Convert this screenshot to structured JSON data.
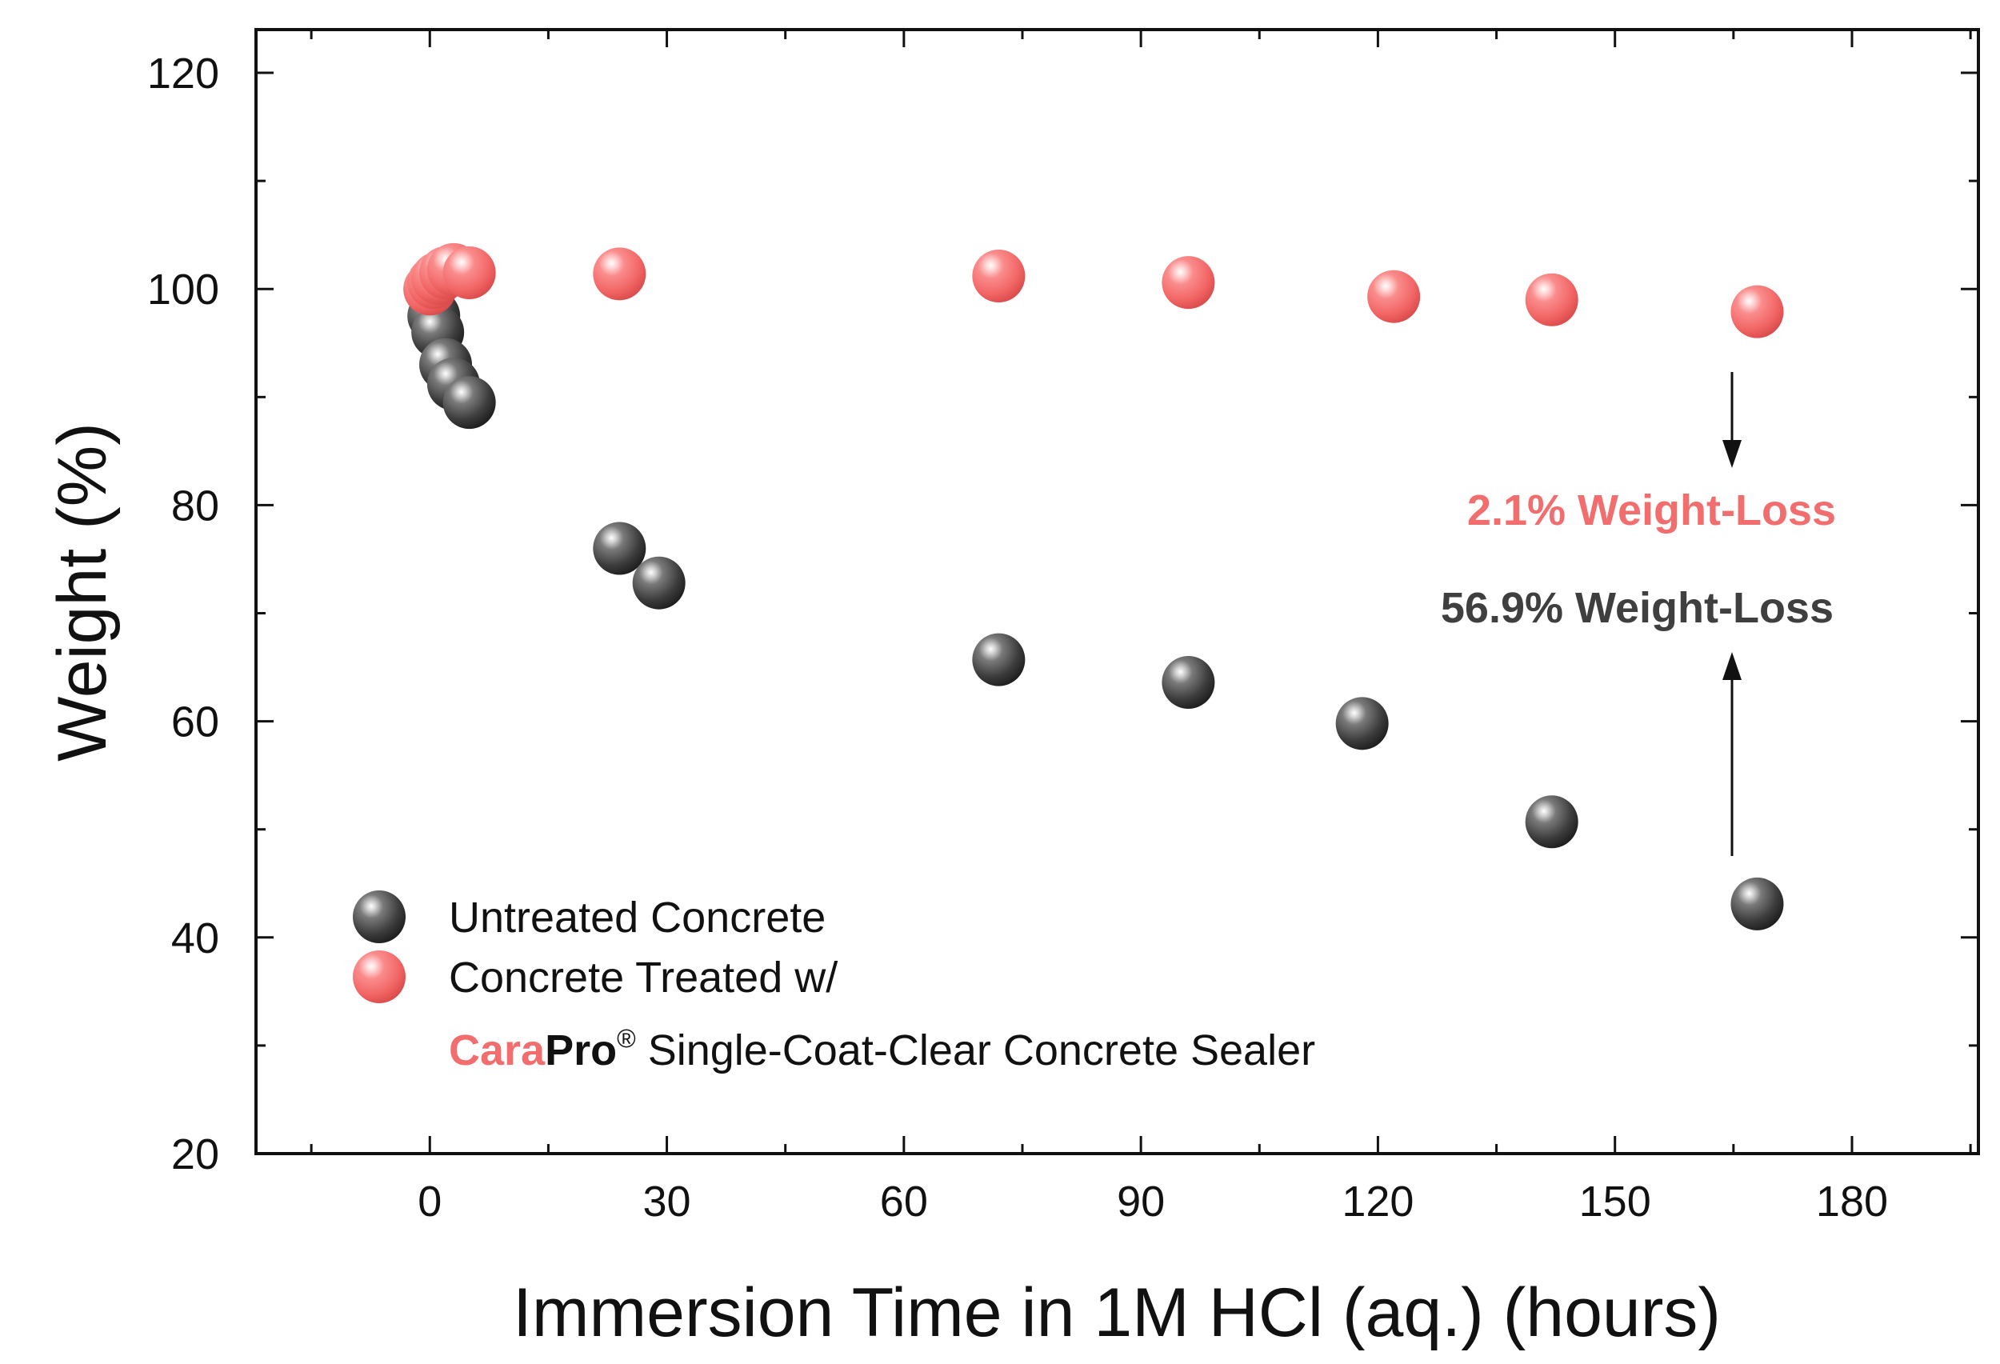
{
  "chart_data": {
    "type": "scatter",
    "xlabel": "Immersion Time in 1M HCl (aq.) (hours)",
    "ylabel": "Weight (%)",
    "xlim": [
      -22,
      196
    ],
    "ylim": [
      20,
      124
    ],
    "xticks": [
      0,
      30,
      60,
      90,
      120,
      150,
      180
    ],
    "yticks": [
      20,
      40,
      60,
      80,
      100,
      120
    ],
    "grid": false,
    "legend_placement": "bottom-left",
    "series": [
      {
        "name": "Untreated Concrete",
        "color": "#3f3f3f",
        "points": [
          {
            "x": 0,
            "y": 100.0
          },
          {
            "x": 0.5,
            "y": 97.5
          },
          {
            "x": 1,
            "y": 96.0
          },
          {
            "x": 2,
            "y": 93.0
          },
          {
            "x": 3,
            "y": 91.2
          },
          {
            "x": 5,
            "y": 89.5
          },
          {
            "x": 24,
            "y": 76.0
          },
          {
            "x": 29,
            "y": 72.8
          },
          {
            "x": 72,
            "y": 65.7
          },
          {
            "x": 96,
            "y": 63.6
          },
          {
            "x": 118,
            "y": 59.8
          },
          {
            "x": 142,
            "y": 50.7
          },
          {
            "x": 168,
            "y": 43.1
          }
        ]
      },
      {
        "name": "Concrete Treated w/",
        "name_line2_brand_a": "Cara",
        "name_line2_brand_b": "Pro",
        "name_line2_registered": "®",
        "name_line2_rest": " Single-Coat-Clear Concrete Sealer",
        "color": "#f26d6d",
        "points": [
          {
            "x": 0,
            "y": 100.0
          },
          {
            "x": 0.5,
            "y": 100.6
          },
          {
            "x": 1,
            "y": 101.0
          },
          {
            "x": 2,
            "y": 101.5
          },
          {
            "x": 3,
            "y": 101.8
          },
          {
            "x": 5,
            "y": 101.5
          },
          {
            "x": 24,
            "y": 101.4
          },
          {
            "x": 72,
            "y": 101.2
          },
          {
            "x": 96,
            "y": 100.6
          },
          {
            "x": 122,
            "y": 99.3
          },
          {
            "x": 142,
            "y": 99.0
          },
          {
            "x": 168,
            "y": 97.9
          }
        ]
      }
    ],
    "annotations": [
      {
        "text": "2.1% Weight-Loss",
        "color": "#f26d6d"
      },
      {
        "text": "56.9% Weight-Loss",
        "color": "#3f3f3f"
      }
    ],
    "brand_colors": {
      "cara": "#f26d6d",
      "pro": "#111111"
    }
  }
}
